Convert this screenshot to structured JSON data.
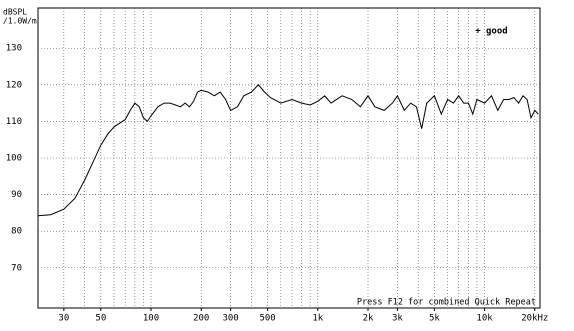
{
  "chart_data": {
    "type": "line",
    "y_label_line1": "dBSPL",
    "y_label_line2": "/1.0W/m",
    "footer": "Press F12 for combined Quick Repeat",
    "log_x": true,
    "grid": true,
    "legend_position": "top-right",
    "xlim": [
      21,
      21500
    ],
    "ylim": [
      59,
      141
    ],
    "xticks": [
      30,
      50,
      100,
      200,
      300,
      500,
      {
        "value": 1000,
        "label": "1k"
      },
      {
        "value": 2000,
        "label": "2k"
      },
      {
        "value": 3000,
        "label": "3k"
      },
      {
        "value": 5000,
        "label": "5k"
      },
      {
        "value": 10000,
        "label": "10k"
      },
      {
        "value": 20000,
        "label": "20kHz"
      }
    ],
    "xgrid": [
      30,
      40,
      50,
      60,
      70,
      80,
      90,
      100,
      200,
      300,
      400,
      500,
      600,
      700,
      800,
      900,
      1000,
      2000,
      3000,
      4000,
      5000,
      6000,
      7000,
      8000,
      9000,
      10000,
      20000
    ],
    "yticks": [
      70,
      80,
      90,
      100,
      110,
      120,
      130
    ],
    "series": [
      {
        "name": "good",
        "marker": "+",
        "color": "#000000",
        "x": [
          21,
          25,
          30,
          35,
          40,
          45,
          50,
          55,
          60,
          70,
          75,
          80,
          85,
          90,
          95,
          100,
          110,
          120,
          130,
          140,
          150,
          160,
          170,
          180,
          190,
          200,
          220,
          240,
          260,
          280,
          300,
          330,
          360,
          400,
          440,
          480,
          520,
          600,
          700,
          800,
          900,
          1000,
          1100,
          1200,
          1400,
          1600,
          1800,
          2000,
          2200,
          2500,
          2800,
          3000,
          3300,
          3600,
          3900,
          4200,
          4500,
          5000,
          5500,
          6000,
          6500,
          7000,
          7500,
          8000,
          8500,
          9000,
          10000,
          11000,
          12000,
          13000,
          14000,
          15000,
          16000,
          17000,
          18000,
          19000,
          20000,
          21000
        ],
        "values": [
          84.2,
          84.5,
          86,
          89,
          94,
          99,
          103.5,
          106.5,
          108.5,
          110.5,
          113,
          115,
          114,
          111,
          110,
          111.5,
          114,
          115,
          115,
          114.5,
          114,
          115,
          114,
          115.5,
          118,
          118.5,
          118,
          117,
          118,
          116,
          113,
          114,
          117,
          118,
          120,
          118,
          116.5,
          115,
          116,
          115,
          114.5,
          115.5,
          117,
          115,
          117,
          116,
          114,
          117,
          114,
          113,
          115,
          117,
          113,
          115,
          114,
          108,
          115,
          117,
          112,
          116,
          115,
          117,
          115,
          115,
          112,
          116,
          115,
          117,
          113,
          116,
          116,
          116.5,
          115,
          117,
          116,
          111,
          113,
          112
        ]
      }
    ]
  }
}
